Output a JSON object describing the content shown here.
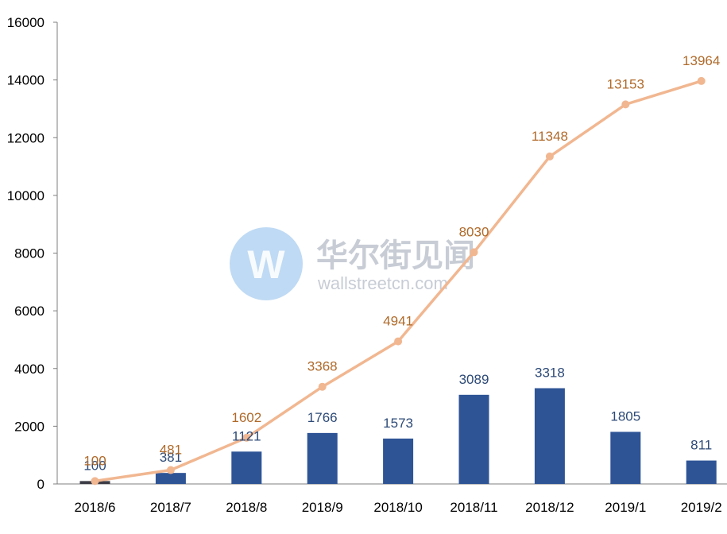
{
  "watermark": {
    "logo_letter": "W",
    "name_cn": "华尔街见闻",
    "site": "wallstreetcn.com"
  },
  "chart_data": {
    "type": "bar",
    "categories": [
      "2018/6",
      "2018/7",
      "2018/8",
      "2018/9",
      "2018/10",
      "2018/11",
      "2018/12",
      "2019/1",
      "2019/2"
    ],
    "series": [
      {
        "type": "bar",
        "values": [
          100,
          381,
          1121,
          1766,
          1573,
          3089,
          3318,
          1805,
          811
        ],
        "color": "#2e5496",
        "first_bar_color": "#3c3c46"
      },
      {
        "type": "line",
        "values": [
          100,
          481,
          1602,
          3368,
          4941,
          8030,
          11348,
          13153,
          13964
        ],
        "color": "#f1b791",
        "label_color": "#b06a2a"
      }
    ],
    "ylim": [
      0,
      16000
    ],
    "yticks": [
      0,
      2000,
      4000,
      6000,
      8000,
      10000,
      12000,
      14000,
      16000
    ],
    "grid": false,
    "legend": "none"
  }
}
